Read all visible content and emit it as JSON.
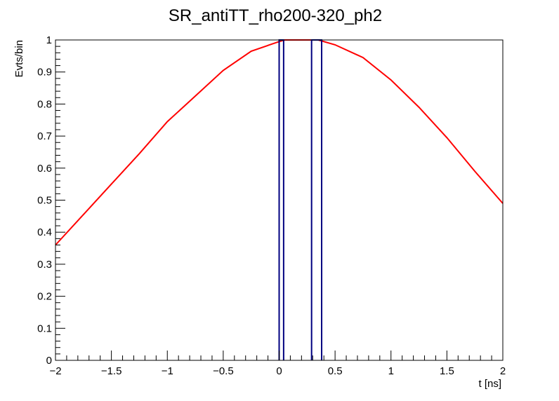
{
  "chart_data": {
    "type": "line",
    "title": "SR_antiTT_rho200-320_ph2",
    "xlabel": "t [ns]",
    "ylabel": "Evts/bin",
    "xlim": [
      -2,
      2
    ],
    "ylim": [
      0,
      1
    ],
    "x_ticks": [
      {
        "value": -2,
        "label": "−2"
      },
      {
        "value": -1.5,
        "label": "−1.5"
      },
      {
        "value": -1,
        "label": "−1"
      },
      {
        "value": -0.5,
        "label": "−0.5"
      },
      {
        "value": 0,
        "label": "0"
      },
      {
        "value": 0.5,
        "label": "0.5"
      },
      {
        "value": 1,
        "label": "1"
      },
      {
        "value": 1.5,
        "label": "1.5"
      },
      {
        "value": 2,
        "label": "2"
      }
    ],
    "y_ticks": [
      {
        "value": 0,
        "label": "0"
      },
      {
        "value": 0.1,
        "label": "0.1"
      },
      {
        "value": 0.2,
        "label": "0.2"
      },
      {
        "value": 0.3,
        "label": "0.3"
      },
      {
        "value": 0.4,
        "label": "0.4"
      },
      {
        "value": 0.5,
        "label": "0.5"
      },
      {
        "value": 0.6,
        "label": "0.6"
      },
      {
        "value": 0.7,
        "label": "0.7"
      },
      {
        "value": 0.8,
        "label": "0.8"
      },
      {
        "value": 0.9,
        "label": "0.9"
      },
      {
        "value": 1,
        "label": "1"
      }
    ],
    "grid": false,
    "legend": "none",
    "series": [
      {
        "kind": "line",
        "color": "#ff0000",
        "x": [
          -2.0,
          -1.75,
          -1.5,
          -1.25,
          -1.0,
          -0.75,
          -0.5,
          -0.25,
          0.0,
          0.05,
          0.35,
          0.5,
          0.75,
          1.0,
          1.25,
          1.5,
          1.75,
          2.0
        ],
        "y": [
          0.36,
          0.455,
          0.55,
          0.645,
          0.745,
          0.825,
          0.905,
          0.965,
          0.995,
          1.0,
          1.0,
          0.985,
          0.945,
          0.875,
          0.79,
          0.695,
          0.59,
          0.49
        ]
      },
      {
        "kind": "bars",
        "color": "#000080",
        "bins": [
          {
            "x0": 0.0,
            "x1": 0.04,
            "y": 1.0
          },
          {
            "x0": 0.29,
            "x1": 0.38,
            "y": 1.0
          }
        ]
      }
    ]
  }
}
